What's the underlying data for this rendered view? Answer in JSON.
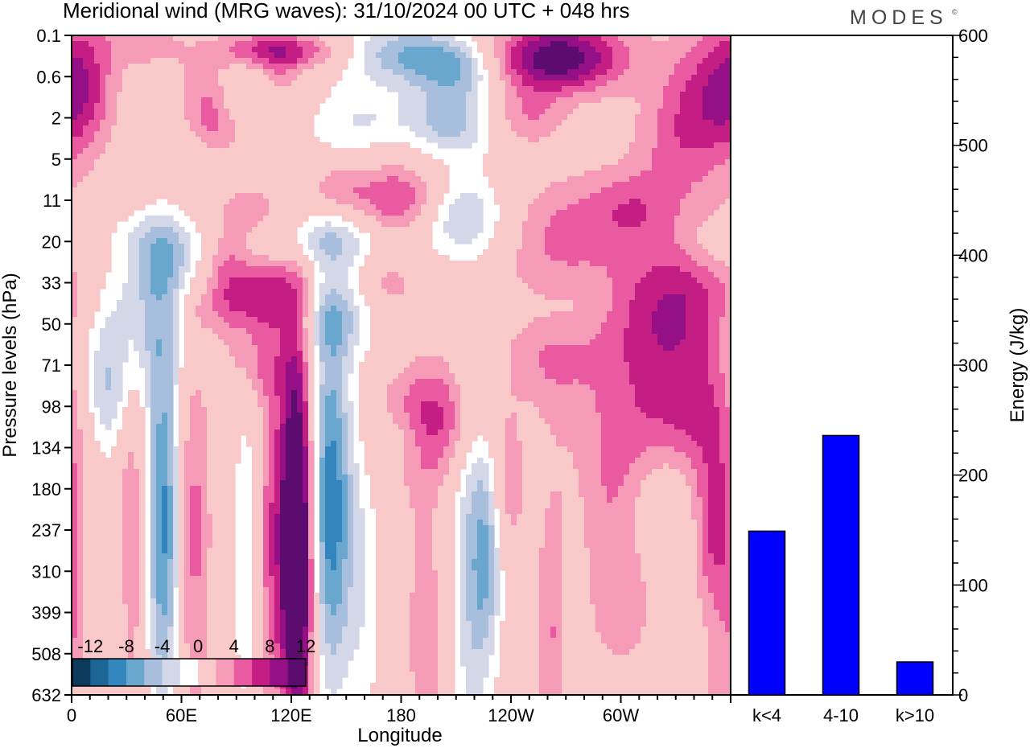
{
  "header": {
    "title": "Meridional wind (MRG waves):  31/10/2024  00 UTC  + 048 hrs",
    "brand": "MODES",
    "brand_mark": "©"
  },
  "colors": {
    "palette": [
      "#0c3a5c",
      "#1d6594",
      "#3386bd",
      "#6aa7cf",
      "#a7bedc",
      "#d4d7e8",
      "#ffffff",
      "#f9c8c9",
      "#f59ab7",
      "#ea5aa0",
      "#c41d83",
      "#951086",
      "#5c0b6e"
    ],
    "bar": "#0000ff"
  },
  "chart_data": [
    {
      "type": "heatmap",
      "title": "Meridional wind (MRG waves):  31/10/2024  00 UTC  + 048 hrs",
      "xlabel": "Longitude",
      "ylabel": "Pressure levels (hPa)",
      "x_ticks": [
        "0",
        "60E",
        "120E",
        "180",
        "120W",
        "60W"
      ],
      "x_tick_values": [
        0,
        60,
        120,
        180,
        240,
        300
      ],
      "xlim": [
        0,
        360
      ],
      "y_ticks": [
        "0.1",
        "0.6",
        "2",
        "5",
        "11",
        "20",
        "33",
        "50",
        "71",
        "98",
        "134",
        "180",
        "237",
        "310",
        "399",
        "508",
        "632"
      ],
      "colorbar": {
        "labels": [
          "-12",
          "-8",
          "-4",
          "0",
          "4",
          "8",
          "12"
        ],
        "levels": [
          -14,
          -12,
          -10,
          -8,
          -6,
          -4,
          -2,
          2,
          4,
          6,
          8,
          10,
          12,
          14
        ]
      },
      "features": [
        {
          "lon": 41,
          "lev": 0.2,
          "dlon": 15,
          "dlev": 0.4,
          "v": 3,
          "tilt": 0.4
        },
        {
          "lon": 5,
          "lev": 1.3,
          "dlon": 12,
          "dlev": 1.1,
          "v": 5,
          "tilt": 0
        },
        {
          "lon": 80,
          "lev": 2.0,
          "dlon": 12,
          "dlev": 0.8,
          "v": 7,
          "tilt": 0.5
        },
        {
          "lon": 90,
          "lev": 3.2,
          "dlon": 14,
          "dlev": 0.8,
          "v": -3,
          "tilt": 0.5
        },
        {
          "lon": 83,
          "lev": 5.3,
          "dlon": 10,
          "dlev": 0.6,
          "v": 5,
          "tilt": 0
        },
        {
          "lon": 97,
          "lev": 4.2,
          "dlon": 13,
          "dlev": 0.6,
          "v": 5,
          "tilt": 0.2
        },
        {
          "lon": 114,
          "lev": 0.95,
          "dlon": 8,
          "dlev": 0.5,
          "v": 3,
          "tilt": 0
        },
        {
          "lon": 92,
          "lev": 1.7,
          "dlon": 12,
          "dlev": 0.5,
          "v": -4,
          "tilt": 0.2
        },
        {
          "lon": 105,
          "lev": 0.3,
          "dlon": 20,
          "dlev": 0.3,
          "v": 5,
          "tilt": -0.4
        },
        {
          "lon": 130,
          "lev": 0.45,
          "dlon": 20,
          "dlev": 0.3,
          "v": 4,
          "tilt": -0.3
        },
        {
          "lon": 180,
          "lev": 0.4,
          "dlon": 25,
          "dlev": 0.5,
          "v": -7,
          "tilt": -0.3
        },
        {
          "lon": 210,
          "lev": 0.85,
          "dlon": 18,
          "dlev": 0.5,
          "v": -7,
          "tilt": 0
        },
        {
          "lon": 265,
          "lev": 0.55,
          "dlon": 26,
          "dlev": 0.6,
          "v": 12,
          "tilt": -0.2
        },
        {
          "lon": 247,
          "lev": 2.0,
          "dlon": 15,
          "dlev": 0.5,
          "v": 4,
          "tilt": 0
        },
        {
          "lon": 208,
          "lev": 2.1,
          "dlon": 18,
          "dlev": 0.6,
          "v": -7,
          "tilt": 0
        },
        {
          "lon": 157,
          "lev": 2.1,
          "dlon": 20,
          "dlev": 0.7,
          "v": -4,
          "tilt": -0.3
        },
        {
          "lon": 145,
          "lev": 3.7,
          "dlon": 11,
          "dlev": 0.5,
          "v": 4,
          "tilt": 0
        },
        {
          "lon": 177,
          "lev": 4.2,
          "dlon": 16,
          "dlev": 0.8,
          "v": 7,
          "tilt": 0
        },
        {
          "lon": 215,
          "lev": 4.3,
          "dlon": 15,
          "dlev": 0.7,
          "v": -5,
          "tilt": 0
        },
        {
          "lon": 140,
          "lev": 5.0,
          "dlon": 45,
          "dlev": 0.55,
          "v": -6,
          "tilt": -1.2
        },
        {
          "lon": 41,
          "lev": 4.8,
          "dlon": 16,
          "dlev": 0.5,
          "v": -3,
          "tilt": 0
        },
        {
          "lon": 48,
          "lev": 5.6,
          "dlon": 18,
          "dlev": 0.8,
          "v": -3,
          "tilt": -0.3
        },
        {
          "lon": 102,
          "lev": 6.2,
          "dlon": 20,
          "dlev": 0.9,
          "v": 8,
          "tilt": -0.4
        },
        {
          "lon": 272,
          "lev": 4.6,
          "dlon": 24,
          "dlev": 0.9,
          "v": 4,
          "tilt": -0.4
        },
        {
          "lon": 305,
          "lev": 4.2,
          "dlon": 15,
          "dlev": 0.6,
          "v": 3,
          "tilt": 0
        },
        {
          "lon": 343,
          "lev": 1.8,
          "dlon": 20,
          "dlev": 1.5,
          "v": 7,
          "tilt": -0.6
        },
        {
          "lon": 330,
          "lev": 6.5,
          "dlon": 30,
          "dlev": 1.3,
          "v": 8,
          "tilt": -0.5
        },
        {
          "lon": 350,
          "lev": 5.1,
          "dlon": 14,
          "dlev": 0.5,
          "v": -3,
          "tilt": 0
        },
        {
          "lon": 265,
          "lev": 6.7,
          "dlon": 22,
          "dlev": 0.6,
          "v": -3,
          "tilt": -0.3
        },
        {
          "lon": 145,
          "lev": 6.8,
          "dlon": 15,
          "dlev": 0.7,
          "v": -5,
          "tilt": 0
        },
        {
          "lon": 172,
          "lev": 6.0,
          "dlon": 12,
          "dlev": 0.5,
          "v": 3,
          "tilt": 0
        },
        {
          "lon": 70,
          "lev": 6.6,
          "dlon": 18,
          "dlev": 0.5,
          "v": 3,
          "tilt": -0.8
        },
        {
          "lon": 38,
          "lev": 6.8,
          "dlon": 32,
          "dlev": 1.2,
          "v": -6,
          "tilt": -0.8
        },
        {
          "lon": 102,
          "lev": 8.1,
          "dlon": 14,
          "dlev": 0.6,
          "v": 3,
          "tilt": 0
        },
        {
          "lon": 20,
          "lev": 8.8,
          "dlon": 12,
          "dlev": 1.0,
          "v": -6,
          "tilt": 0
        },
        {
          "lon": 255,
          "lev": 8.0,
          "dlon": 20,
          "dlev": 1.5,
          "v": 7,
          "tilt": -0.2
        },
        {
          "lon": 237,
          "lev": 9.0,
          "dlon": 22,
          "dlev": 1.2,
          "v": -7,
          "tilt": -0.3
        },
        {
          "lon": 206,
          "lev": 9.3,
          "dlon": 25,
          "dlev": 1.0,
          "v": 8,
          "tilt": -0.3
        },
        {
          "lon": 180,
          "lev": 9.8,
          "dlon": 10,
          "dlev": 0.5,
          "v": -3,
          "tilt": 0
        },
        {
          "lon": 335,
          "lev": 9.4,
          "dlon": 25,
          "dlev": 1.4,
          "v": 9,
          "tilt": -0.3
        },
        {
          "lon": 318,
          "lev": 11.1,
          "dlon": 20,
          "dlev": 1.5,
          "v": -7,
          "tilt": -0.3
        },
        {
          "lon": 352,
          "lev": 12.0,
          "dlon": 9,
          "dlev": 1.3,
          "v": 7,
          "tilt": 0
        },
        {
          "lon": 300,
          "lev": 12.0,
          "dlon": 16,
          "dlev": 2.0,
          "v": 7,
          "tilt": 0
        },
        {
          "lon": 22,
          "lev": 13.0,
          "dlon": 8,
          "dlev": 3.0,
          "v": -3,
          "tilt": 0
        },
        {
          "lon": 32,
          "lev": 12.0,
          "dlon": 7,
          "dlev": 3.5,
          "v": 5,
          "tilt": 0
        },
        {
          "lon": 50,
          "lev": 11.8,
          "dlon": 7,
          "dlev": 3.2,
          "v": -11,
          "tilt": 0
        },
        {
          "lon": 66,
          "lev": 12.0,
          "dlon": 7,
          "dlev": 3.3,
          "v": 5,
          "tilt": 0
        },
        {
          "lon": 95,
          "lev": 12.7,
          "dlon": 5,
          "dlev": 2.8,
          "v": -4,
          "tilt": 0
        },
        {
          "lon": 108,
          "lev": 12.3,
          "dlon": 5,
          "dlev": 3.0,
          "v": 4,
          "tilt": 0
        },
        {
          "lon": 123,
          "lev": 11.5,
          "dlon": 7,
          "dlev": 3.0,
          "v": 16,
          "tilt": 0
        },
        {
          "lon": 123,
          "lev": 14.5,
          "dlon": 6,
          "dlev": 2.0,
          "v": 6,
          "tilt": 0
        },
        {
          "lon": 141,
          "lev": 11.3,
          "dlon": 9,
          "dlev": 3.2,
          "v": -12,
          "tilt": 0
        },
        {
          "lon": 160,
          "lev": 13.5,
          "dlon": 7,
          "dlev": 3.0,
          "v": -3,
          "tilt": 0
        },
        {
          "lon": 193,
          "lev": 14.5,
          "dlon": 8,
          "dlev": 3.5,
          "v": 3,
          "tilt": 0
        },
        {
          "lon": 217,
          "lev": 13.3,
          "dlon": 7,
          "dlev": 3.6,
          "v": -5,
          "tilt": 0
        },
        {
          "lon": 227,
          "lev": 12.6,
          "dlon": 6,
          "dlev": 2.0,
          "v": -7,
          "tilt": 0
        },
        {
          "lon": 238,
          "lev": 10.8,
          "dlon": 7,
          "dlev": 1.2,
          "v": 4,
          "tilt": 0
        },
        {
          "lon": 263,
          "lev": 14.7,
          "dlon": 7,
          "dlev": 2.5,
          "v": 4,
          "tilt": 0
        },
        {
          "lon": 275,
          "lev": 15.2,
          "dlon": 5,
          "dlev": 2.0,
          "v": -3,
          "tilt": 0
        },
        {
          "lon": 354,
          "lev": 15.5,
          "dlon": 6,
          "dlev": 1.5,
          "v": 3,
          "tilt": 0
        },
        {
          "lon": 3,
          "lev": 14.0,
          "dlon": 4,
          "dlev": 1.0,
          "v": 3,
          "tilt": 0
        }
      ]
    },
    {
      "type": "bar",
      "categories": [
        "k<4",
        "4-10",
        "k>10"
      ],
      "values": [
        149,
        236,
        30
      ],
      "ylabel": "Energy (J/kg)",
      "ylim": [
        0,
        600
      ],
      "y_ticks": [
        "0",
        "100",
        "200",
        "300",
        "400",
        "500",
        "600"
      ],
      "y_tick_values": [
        0,
        100,
        200,
        300,
        400,
        500,
        600
      ]
    }
  ]
}
